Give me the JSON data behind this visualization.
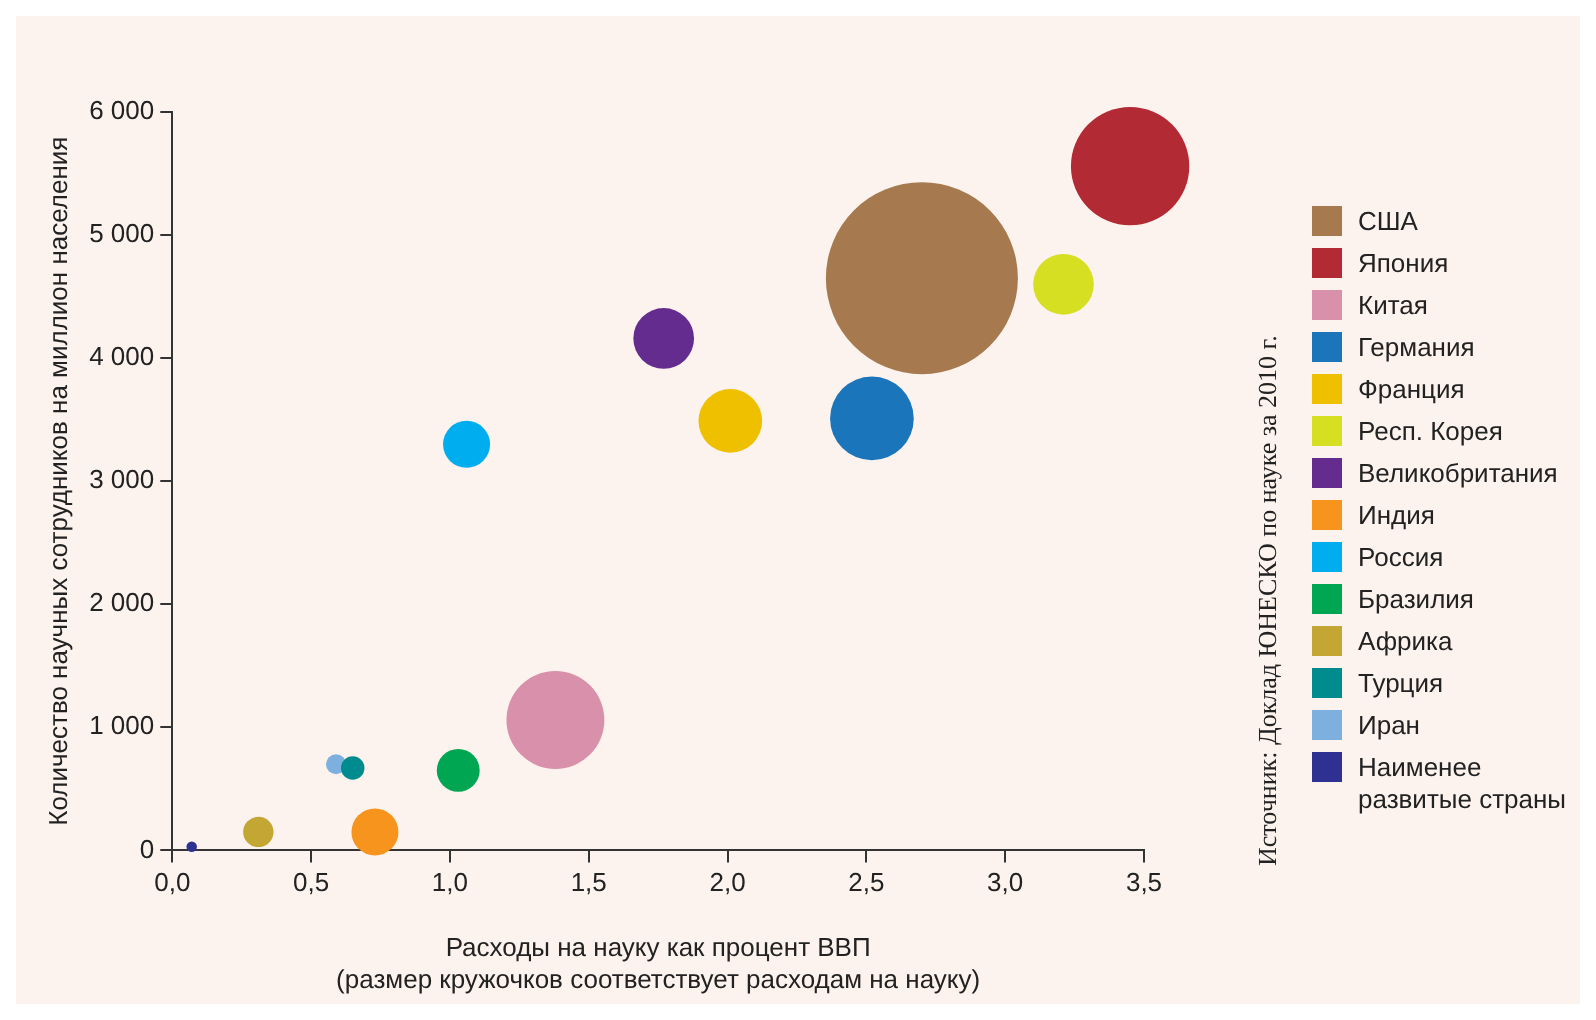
{
  "chart_data": {
    "type": "bubble",
    "xlabel": "Расходы на науку как процент ВВП\n(размер кружочков соответствует расходам на науку)",
    "ylabel": "Количество научных сотрудников на миллион населения",
    "xlim": [
      0,
      3.5
    ],
    "ylim": [
      0,
      6000
    ],
    "xticks": [
      {
        "value": 0,
        "label": "0,0"
      },
      {
        "value": 0.5,
        "label": "0,5"
      },
      {
        "value": 1,
        "label": "1,0"
      },
      {
        "value": 1.5,
        "label": "1,5"
      },
      {
        "value": 2,
        "label": "2,0"
      },
      {
        "value": 2.5,
        "label": "2,5"
      },
      {
        "value": 3,
        "label": "3,0"
      },
      {
        "value": 3.5,
        "label": "3,5"
      }
    ],
    "yticks": [
      0,
      {
        "value": 1000,
        "label": "1 000"
      },
      {
        "value": 2000,
        "label": "2 000"
      },
      {
        "value": 3000,
        "label": "3 000"
      },
      {
        "value": 4000,
        "label": "4 000"
      },
      {
        "value": 5000,
        "label": "5 000"
      },
      {
        "value": 6000,
        "label": "6 000"
      }
    ],
    "grid": false,
    "legend": "right",
    "marker": "circle",
    "annotations": [
      "Источник: Доклад ЮНЕСКО по науке за 2010 г."
    ],
    "series": [
      {
        "name": "США",
        "color": "#a67a4e",
        "x": [
          2.7
        ],
        "values": [
          4650
        ],
        "sizes": [
          1
        ]
      },
      {
        "name": "Япония",
        "color": "#b22a33",
        "x": [
          3.45
        ],
        "values": [
          5560
        ],
        "sizes": [
          0.38
        ]
      },
      {
        "name": "Китая",
        "color": "#d990aa",
        "x": [
          1.38
        ],
        "values": [
          1060
        ],
        "sizes": [
          0.26
        ]
      },
      {
        "name": "Германия",
        "color": "#1b75bb",
        "x": [
          2.52
        ],
        "values": [
          3510
        ],
        "sizes": [
          0.19
        ]
      },
      {
        "name": "Франция",
        "color": "#efc000",
        "x": [
          2.01
        ],
        "values": [
          3490
        ],
        "sizes": [
          0.11
        ]
      },
      {
        "name": "Респ. Корея",
        "color": "#d7df23",
        "x": [
          3.21
        ],
        "values": [
          4600
        ],
        "sizes": [
          0.1
        ]
      },
      {
        "name": "Великобритания",
        "color": "#652c8f",
        "x": [
          1.77
        ],
        "values": [
          4160
        ],
        "sizes": [
          0.1
        ]
      },
      {
        "name": "Индия",
        "color": "#f7941e",
        "x": [
          0.73
        ],
        "values": [
          150
        ],
        "sizes": [
          0.06
        ]
      },
      {
        "name": "Россия",
        "color": "#00aeef",
        "x": [
          1.06
        ],
        "values": [
          3300
        ],
        "sizes": [
          0.06
        ]
      },
      {
        "name": "Бразилия",
        "color": "#00a651",
        "x": [
          1.03
        ],
        "values": [
          650
        ],
        "sizes": [
          0.05
        ]
      },
      {
        "name": "Африка",
        "color": "#c4a635",
        "x": [
          0.31
        ],
        "values": [
          150
        ],
        "sizes": [
          0.025
        ]
      },
      {
        "name": "Турция",
        "color": "#008b8f",
        "x": [
          0.65
        ],
        "values": [
          670
        ],
        "sizes": [
          0.015
        ]
      },
      {
        "name": "Иран",
        "color": "#7dafdf",
        "x": [
          0.59
        ],
        "values": [
          700
        ],
        "sizes": [
          0.011
        ]
      },
      {
        "name": "Наименее развитые страны",
        "color": "#2e3192",
        "x": [
          0.07
        ],
        "values": [
          30
        ],
        "sizes": [
          0.003
        ]
      }
    ]
  }
}
